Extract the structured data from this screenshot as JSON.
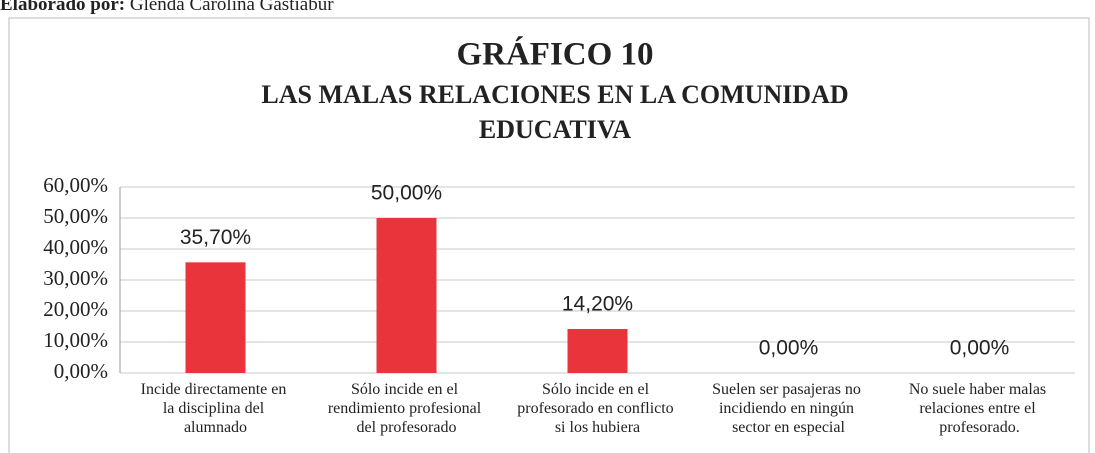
{
  "header": {
    "label": "Elaborado por:",
    "author": "Glenda Carolina Gastiabur"
  },
  "chart_data": {
    "type": "bar",
    "title": "GRÁFICO 10",
    "subtitle": [
      "LAS MALAS RELACIONES EN LA COMUNIDAD",
      "EDUCATIVA"
    ],
    "categories": [
      "Incide directamente en la disciplina del alumnado",
      "Sólo incide en el rendimiento profesional del profesorado",
      "Sólo incide en el profesorado en conflicto si los hubiera",
      "Suelen ser pasajeras no incidiendo en ningún sector en especial",
      "No suele haber malas relaciones entre el profesorado."
    ],
    "values": [
      35.7,
      50,
      14.2,
      0,
      0
    ],
    "value_labels": [
      "35,70%",
      "50,00%",
      "14,20%",
      "0,00%",
      "0,00%"
    ],
    "color": "#e8343a",
    "ylim": [
      0,
      60
    ],
    "yticks": [
      {
        "value": 0,
        "label": "0,00%"
      },
      {
        "value": 10,
        "label": "10,00%"
      },
      {
        "value": 20,
        "label": "20,00%"
      },
      {
        "value": 30,
        "label": "30,00%"
      },
      {
        "value": 40,
        "label": "40,00%"
      },
      {
        "value": 50,
        "label": "50,00%"
      },
      {
        "value": 60,
        "label": "60,00%"
      }
    ],
    "grid": true
  }
}
